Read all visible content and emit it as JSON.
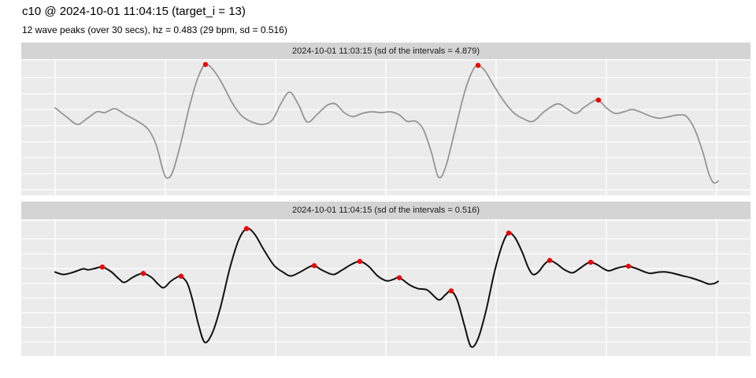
{
  "header": {
    "title": "c10 @ 2024-10-01 11:04:15 (target_i = 13)",
    "subtitle": "12 wave peaks (over 30 secs), hz = 0.483 (29 bpm, sd = 0.516)"
  },
  "colors": {
    "background": "#ffffff",
    "panel_bg": "#ebebeb",
    "strip_bg": "#d4d4d4",
    "gridline": "#ffffff",
    "series_1": "#919191",
    "series_2": "#111111",
    "peak_marker": "#f00000",
    "strip_text": "#1a1a1a",
    "title_text": "#000000"
  },
  "chart_data": [
    {
      "type": "line",
      "panel_title": "2024-10-01 11:03:15 (sd of the intervals = 4.879)",
      "line_color": "#919191",
      "peak_color": "#f00000",
      "x_axis": {
        "unit": "seconds",
        "range": [
          0,
          30.1
        ],
        "gridline_every": 5,
        "tick_labels_shown": false
      },
      "y_axis": {
        "unit": "amplitude (arbitrary, 0-100 of panel)",
        "labels_shown": false,
        "grid": true
      },
      "points": [
        [
          0,
          64.2
        ],
        [
          0.5,
          57.8
        ],
        [
          1,
          52
        ],
        [
          1.43,
          56.1
        ],
        [
          1.89,
          61.3
        ],
        [
          2.25,
          60.7
        ],
        [
          2.71,
          63.6
        ],
        [
          3.21,
          59
        ],
        [
          3.75,
          54.3
        ],
        [
          4.21,
          48.6
        ],
        [
          4.57,
          37.6
        ],
        [
          4.89,
          18.5
        ],
        [
          5.07,
          12.7
        ],
        [
          5.32,
          16.8
        ],
        [
          5.68,
          37
        ],
        [
          6.11,
          66.5
        ],
        [
          6.5,
          87.3
        ],
        [
          6.82,
          96
        ],
        [
          7.18,
          91.9
        ],
        [
          7.57,
          82.1
        ],
        [
          8.04,
          67.6
        ],
        [
          8.46,
          58.4
        ],
        [
          8.93,
          53.8
        ],
        [
          9.43,
          52
        ],
        [
          9.86,
          55.5
        ],
        [
          10.25,
          67.6
        ],
        [
          10.64,
          75.7
        ],
        [
          11.04,
          66.5
        ],
        [
          11.43,
          53.8
        ],
        [
          11.89,
          59.5
        ],
        [
          12.32,
          65.9
        ],
        [
          12.71,
          67.1
        ],
        [
          13.11,
          60.7
        ],
        [
          13.5,
          57.8
        ],
        [
          13.93,
          60.1
        ],
        [
          14.36,
          61.3
        ],
        [
          14.79,
          60.7
        ],
        [
          15.21,
          61.3
        ],
        [
          15.61,
          59
        ],
        [
          15.96,
          54.3
        ],
        [
          16.36,
          54.3
        ],
        [
          16.71,
          48
        ],
        [
          17.07,
          31.2
        ],
        [
          17.39,
          13.3
        ],
        [
          17.71,
          20.8
        ],
        [
          18.14,
          48
        ],
        [
          18.57,
          75.7
        ],
        [
          18.93,
          91.3
        ],
        [
          19.18,
          95.4
        ],
        [
          19.5,
          91.3
        ],
        [
          19.86,
          81.5
        ],
        [
          20.29,
          70.5
        ],
        [
          20.79,
          60.7
        ],
        [
          21.25,
          56.1
        ],
        [
          21.68,
          54.3
        ],
        [
          22.21,
          61.8
        ],
        [
          22.79,
          67.1
        ],
        [
          23.21,
          63.6
        ],
        [
          23.61,
          60.1
        ],
        [
          24,
          64.7
        ],
        [
          24.39,
          68.8
        ],
        [
          24.64,
          69.9
        ],
        [
          25,
          64.2
        ],
        [
          25.39,
          60.1
        ],
        [
          25.79,
          61.3
        ],
        [
          26.18,
          63
        ],
        [
          26.61,
          60.7
        ],
        [
          27.04,
          57.8
        ],
        [
          27.39,
          56.6
        ],
        [
          27.86,
          57.8
        ],
        [
          28.29,
          59
        ],
        [
          28.64,
          57.8
        ],
        [
          29,
          48.6
        ],
        [
          29.36,
          32.4
        ],
        [
          29.64,
          16.2
        ],
        [
          29.86,
          9.2
        ],
        [
          30.07,
          10.4
        ]
      ],
      "peaks": [
        [
          6.82,
          96
        ],
        [
          19.18,
          95.4
        ],
        [
          24.64,
          69.9
        ]
      ]
    },
    {
      "type": "line",
      "panel_title": "2024-10-01 11:04:15 (sd of the intervals = 0.516)",
      "line_color": "#111111",
      "peak_color": "#f00000",
      "x_axis": {
        "unit": "seconds",
        "range": [
          0,
          30.1
        ],
        "gridline_every": 5,
        "tick_labels_shown": false
      },
      "y_axis": {
        "unit": "amplitude (arbitrary, 0-100 of panel)",
        "labels_shown": false,
        "grid": true
      },
      "points": [
        [
          0,
          61.2
        ],
        [
          0.36,
          59.5
        ],
        [
          0.79,
          60.9
        ],
        [
          1.25,
          63.5
        ],
        [
          1.5,
          62.9
        ],
        [
          1.79,
          63.8
        ],
        [
          2.14,
          64.9
        ],
        [
          2.54,
          61.5
        ],
        [
          2.89,
          56.3
        ],
        [
          3.14,
          53.7
        ],
        [
          3.5,
          57.2
        ],
        [
          3.79,
          59.5
        ],
        [
          4,
          60.2
        ],
        [
          4.36,
          57.5
        ],
        [
          4.68,
          52.3
        ],
        [
          4.93,
          49.8
        ],
        [
          5.25,
          54.6
        ],
        [
          5.57,
          57.8
        ],
        [
          5.71,
          58.2
        ],
        [
          6,
          52.9
        ],
        [
          6.25,
          39.7
        ],
        [
          6.5,
          23
        ],
        [
          6.79,
          9.9
        ],
        [
          7.14,
          17.2
        ],
        [
          7.5,
          35.6
        ],
        [
          7.93,
          64.4
        ],
        [
          8.32,
          84.5
        ],
        [
          8.68,
          92.9
        ],
        [
          9.04,
          89.1
        ],
        [
          9.46,
          77.6
        ],
        [
          9.93,
          66.1
        ],
        [
          10.36,
          60.9
        ],
        [
          10.68,
          58.4
        ],
        [
          11.07,
          60.9
        ],
        [
          11.46,
          64.4
        ],
        [
          11.75,
          65.9
        ],
        [
          12.11,
          62.6
        ],
        [
          12.61,
          59.4
        ],
        [
          13,
          62.6
        ],
        [
          13.46,
          67
        ],
        [
          13.82,
          69
        ],
        [
          14.21,
          65.5
        ],
        [
          14.64,
          58.2
        ],
        [
          15.04,
          54.8
        ],
        [
          15.36,
          56
        ],
        [
          15.61,
          57.1
        ],
        [
          16.07,
          51.9
        ],
        [
          16.46,
          49.1
        ],
        [
          16.89,
          48
        ],
        [
          17.39,
          41
        ],
        [
          17.71,
          44.8
        ],
        [
          17.96,
          47.5
        ],
        [
          18.25,
          40.2
        ],
        [
          18.57,
          21.8
        ],
        [
          18.86,
          6.9
        ],
        [
          19.18,
          12.6
        ],
        [
          19.54,
          32.8
        ],
        [
          19.93,
          61.5
        ],
        [
          20.29,
          81.6
        ],
        [
          20.57,
          89.7
        ],
        [
          20.86,
          86.2
        ],
        [
          21.18,
          75.9
        ],
        [
          21.46,
          64.4
        ],
        [
          21.68,
          59.4
        ],
        [
          21.93,
          61.5
        ],
        [
          22.18,
          66.7
        ],
        [
          22.43,
          69.7
        ],
        [
          22.75,
          67.2
        ],
        [
          23.07,
          63.2
        ],
        [
          23.46,
          60.7
        ],
        [
          23.79,
          63.8
        ],
        [
          24.07,
          67
        ],
        [
          24.29,
          68.4
        ],
        [
          24.57,
          66.7
        ],
        [
          24.86,
          63.8
        ],
        [
          25.11,
          62.1
        ],
        [
          25.43,
          63.8
        ],
        [
          25.75,
          65.1
        ],
        [
          26,
          65.5
        ],
        [
          26.36,
          63.8
        ],
        [
          26.71,
          61.5
        ],
        [
          27,
          60.3
        ],
        [
          27.32,
          61.1
        ],
        [
          27.64,
          61.3
        ],
        [
          28.04,
          60.3
        ],
        [
          28.43,
          58.6
        ],
        [
          28.86,
          56.9
        ],
        [
          29.29,
          54.6
        ],
        [
          29.64,
          52.5
        ],
        [
          29.89,
          52.9
        ],
        [
          30.07,
          54.4
        ]
      ],
      "peaks": [
        [
          2.14,
          64.9
        ],
        [
          4,
          60.2
        ],
        [
          5.71,
          58.2
        ],
        [
          8.68,
          92.9
        ],
        [
          11.75,
          65.9
        ],
        [
          13.82,
          69
        ],
        [
          15.61,
          57.1
        ],
        [
          17.96,
          47.5
        ],
        [
          20.57,
          89.7
        ],
        [
          22.43,
          69.7
        ],
        [
          24.29,
          68.4
        ],
        [
          26,
          65.5
        ]
      ]
    }
  ]
}
